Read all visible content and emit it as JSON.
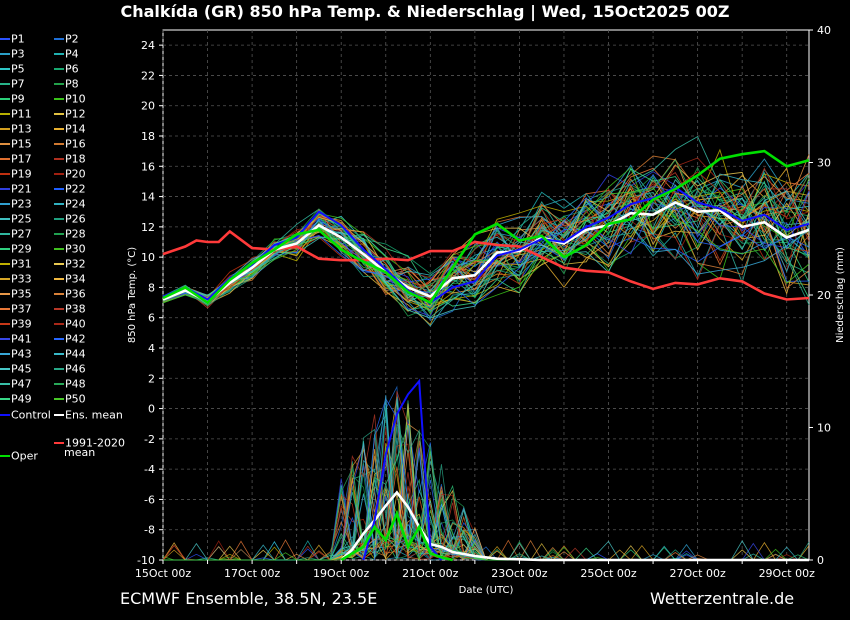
{
  "header": {
    "title": "Chalkída  (GR)  850 hPa Temp. & Niederschlag | Wed, 15Oct2025 00Z"
  },
  "footer": {
    "left": "ECMWF Ensemble, 38.5N, 23.5E",
    "right": "Wetterzentrale.de"
  },
  "legend": {
    "members": [
      "P1",
      "P2",
      "P3",
      "P4",
      "P5",
      "P6",
      "P7",
      "P8",
      "P9",
      "P10",
      "P11",
      "P12",
      "P13",
      "P14",
      "P15",
      "P16",
      "P17",
      "P18",
      "P19",
      "P20",
      "P21",
      "P22",
      "P23",
      "P24",
      "P25",
      "P26",
      "P27",
      "P28",
      "P29",
      "P30",
      "P31",
      "P32",
      "P33",
      "P34",
      "P35",
      "P36",
      "P37",
      "P38",
      "P39",
      "P40",
      "P41",
      "P42",
      "P43",
      "P44",
      "P45",
      "P46",
      "P47",
      "P48",
      "P49",
      "P50"
    ],
    "member_colors": [
      "#2a52ff",
      "#1f6fd6",
      "#2aa0c8",
      "#20b0b0",
      "#2ec6c6",
      "#18a870",
      "#27b489",
      "#22a14a",
      "#2bd07a",
      "#39c21a",
      "#b8b000",
      "#e0c040",
      "#d4a020",
      "#e8b030",
      "#e09040",
      "#d07830",
      "#e07030",
      "#b03020",
      "#c03010",
      "#a02010",
      "#3040e0",
      "#2060ff",
      "#30a0d0",
      "#30b0c0",
      "#40c0c0",
      "#20a080",
      "#30b8a0",
      "#20a050",
      "#30d080",
      "#40c020",
      "#c0b000",
      "#e8c850",
      "#d8a828",
      "#f0b840",
      "#e89848",
      "#d88038",
      "#e87838",
      "#b83828",
      "#c83818",
      "#a82818",
      "#3848e8",
      "#2868ff",
      "#38a8d8",
      "#38b8c8",
      "#48c8c8",
      "#28a888",
      "#38c0a8",
      "#28a858",
      "#38d888",
      "#48c828"
    ],
    "control": "Control",
    "ens_mean": "Ens. mean",
    "clim_line1": "1991-2020",
    "clim_line2": "mean",
    "oper": "Oper",
    "colors": {
      "control": "#1010ff",
      "ens_mean": "#ffffff",
      "clim": "#ff3a3a",
      "oper": "#00e000"
    }
  },
  "chart_data": {
    "type": "line",
    "xlabel": "Date (UTC)",
    "ylabel": "850 hPa Temp. (°C)",
    "y2label": "Niederschlag (mm)",
    "ylim": [
      -10,
      25
    ],
    "y2lim": [
      0,
      40
    ],
    "yticks": [
      -10,
      -8,
      -6,
      -4,
      -2,
      0,
      2,
      4,
      6,
      8,
      10,
      12,
      14,
      16,
      18,
      20,
      22,
      24
    ],
    "y2ticks": [
      0,
      10,
      20,
      30,
      40
    ],
    "xtick_labels": [
      "15Oct 00z",
      "17Oct 00z",
      "19Oct 00z",
      "21Oct 00z",
      "23Oct 00z",
      "25Oct 00z",
      "27Oct 00z",
      "29Oct 00z"
    ],
    "x_days": [
      0,
      2,
      4,
      6,
      8,
      10,
      12,
      14
    ],
    "x_range_days": [
      0,
      14.5
    ],
    "grid": true,
    "series": [
      {
        "name": "1991-2020 mean",
        "color": "#ff3a3a",
        "axis": "left",
        "x": [
          0,
          0.5,
          0.75,
          1,
          1.25,
          1.5,
          2,
          2.5,
          3,
          3.5,
          4,
          4.5,
          5,
          5.5,
          6,
          6.5,
          7,
          7.5,
          8,
          8.5,
          9,
          9.5,
          10,
          10.5,
          11,
          11.5,
          12,
          12.5,
          13,
          13.5,
          14,
          14.5
        ],
        "values": [
          10.2,
          10.7,
          11.1,
          11.0,
          11.0,
          11.7,
          10.6,
          10.5,
          10.7,
          9.9,
          9.8,
          9.8,
          9.9,
          9.8,
          10.4,
          10.4,
          11.0,
          10.8,
          10.7,
          10.0,
          9.3,
          9.1,
          9.0,
          8.4,
          7.9,
          8.3,
          8.2,
          8.6,
          8.4,
          7.6,
          7.2,
          7.3
        ]
      },
      {
        "name": "Ens. mean",
        "color": "#ffffff",
        "axis": "left",
        "x": [
          0,
          0.5,
          1,
          1.5,
          2,
          2.5,
          3,
          3.5,
          4,
          4.5,
          5,
          5.5,
          6,
          6.5,
          7,
          7.5,
          8,
          8.5,
          9,
          9.5,
          10,
          10.5,
          11,
          11.5,
          12,
          12.5,
          13,
          13.5,
          14,
          14.5
        ],
        "values": [
          7.2,
          7.8,
          7.1,
          8.3,
          9.3,
          10.5,
          10.9,
          12.1,
          11.3,
          10.2,
          9.0,
          8.0,
          7.4,
          8.6,
          8.8,
          10.3,
          10.4,
          11.3,
          10.9,
          11.8,
          12.1,
          12.9,
          12.8,
          13.6,
          13.0,
          13.1,
          12.0,
          12.3,
          11.3,
          11.8
        ]
      },
      {
        "name": "Control",
        "color": "#1010ff",
        "axis": "left",
        "x": [
          0,
          0.5,
          1,
          1.5,
          2,
          2.5,
          3,
          3.5,
          4,
          4.5,
          5,
          5.5,
          6,
          6.5,
          7,
          7.5,
          8,
          8.5,
          9,
          9.5,
          10,
          10.5,
          11,
          11.5,
          12,
          12.5,
          13,
          13.5,
          14,
          14.5
        ],
        "values": [
          7.4,
          8.0,
          7.2,
          8.6,
          9.5,
          10.8,
          11.3,
          13.0,
          12.1,
          10.5,
          9.2,
          7.8,
          7.0,
          8.0,
          8.4,
          10.1,
          10.5,
          11.2,
          11.0,
          12.0,
          12.6,
          13.5,
          13.9,
          14.6,
          13.6,
          13.2,
          12.4,
          12.8,
          11.8,
          12.2
        ]
      },
      {
        "name": "Oper",
        "color": "#00e000",
        "axis": "left",
        "x": [
          0,
          0.5,
          1,
          1.5,
          2,
          2.5,
          3,
          3.5,
          4,
          4.5,
          5,
          5.5,
          6,
          6.5,
          7,
          7.5,
          8,
          8.5,
          9,
          9.5,
          10,
          10.5,
          11,
          11.5,
          12,
          12.5,
          13,
          13.5,
          14,
          14.5
        ],
        "values": [
          7.3,
          8.0,
          7.0,
          8.5,
          9.6,
          10.5,
          11.5,
          11.8,
          10.5,
          9.7,
          9.0,
          7.7,
          7.0,
          9.3,
          11.5,
          12.2,
          11.1,
          11.4,
          10.0,
          10.8,
          12.2,
          12.5,
          13.8,
          14.5,
          15.4,
          16.5,
          16.8,
          17.0,
          16.0,
          16.4
        ]
      },
      {
        "name": "Ens. mean precip",
        "color": "#ffffff",
        "axis": "right",
        "x": [
          4,
          4.25,
          4.5,
          4.75,
          5,
          5.25,
          5.5,
          5.75,
          6,
          6.25,
          6.5,
          7,
          7.5,
          8,
          8.5,
          9,
          12,
          14.5
        ],
        "values": [
          0,
          0.8,
          2.0,
          3.0,
          4.1,
          5.1,
          4.0,
          2.5,
          1.2,
          1.0,
          0.6,
          0.3,
          0.1,
          0.05,
          0,
          0,
          0,
          0
        ]
      },
      {
        "name": "Control precip",
        "color": "#1010ff",
        "axis": "right",
        "x": [
          4.5,
          4.75,
          5,
          5.25,
          5.5,
          5.75,
          6,
          6.25
        ],
        "values": [
          0,
          3,
          8,
          11,
          12.5,
          13.5,
          1,
          0
        ]
      },
      {
        "name": "Oper precip",
        "color": "#00e000",
        "axis": "right",
        "x": [
          4,
          4.5,
          4.75,
          5,
          5.25,
          5.5,
          5.75,
          6,
          6.25,
          6.5
        ],
        "values": [
          0,
          1,
          2.5,
          1.5,
          3.5,
          1.0,
          2.5,
          0.5,
          0.2,
          0
        ]
      }
    ]
  }
}
